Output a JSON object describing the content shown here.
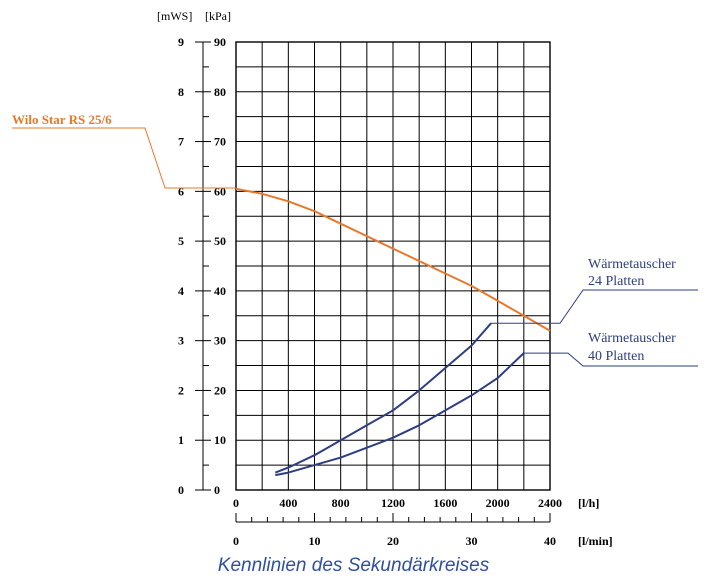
{
  "chart_data": {
    "type": "line",
    "title": "Kennlinien des Sekundärkreises",
    "y_units": [
      "[mWS]",
      "[kPa]"
    ],
    "y_left_ticks": [
      "0",
      "1",
      "2",
      "3",
      "4",
      "5",
      "6",
      "7",
      "8",
      "9"
    ],
    "y_right_ticks": [
      "0",
      "10",
      "20",
      "30",
      "40",
      "50",
      "60",
      "70",
      "80",
      "90"
    ],
    "x_ticks": [
      "0",
      "400",
      "800",
      "1200",
      "1600",
      "2000",
      "2400"
    ],
    "x_unit": "[l/h]",
    "x2_ticks": [
      "0",
      "10",
      "20",
      "30",
      "40"
    ],
    "x2_unit": "[l/min]",
    "xlim": [
      0,
      2400
    ],
    "ylim": [
      0,
      90
    ],
    "grid": true,
    "series": [
      {
        "name": "Wilo Star RS 25/6",
        "color": "#e8782a",
        "x": [
          0,
          200,
          400,
          600,
          800,
          1000,
          1200,
          1400,
          1600,
          1800,
          2000,
          2200,
          2400
        ],
        "y": [
          60.5,
          59.5,
          58,
          56,
          53.5,
          51,
          48.5,
          46,
          43.5,
          41,
          38,
          35,
          32
        ]
      },
      {
        "name": "Wärmetauscher 24 Platten",
        "color": "#2e3e82",
        "x": [
          300,
          400,
          600,
          800,
          1000,
          1200,
          1400,
          1600,
          1800,
          1950
        ],
        "y": [
          3.5,
          4.5,
          7,
          10,
          13,
          16,
          20,
          24.5,
          29,
          33.5
        ]
      },
      {
        "name": "Wärmetauscher 40 Platten",
        "color": "#2e3e82",
        "x": [
          300,
          400,
          600,
          800,
          1000,
          1200,
          1400,
          1600,
          1800,
          2000,
          2200
        ],
        "y": [
          3,
          3.5,
          5,
          6.5,
          8.5,
          10.5,
          13,
          16,
          19,
          22.5,
          27.5
        ]
      }
    ],
    "labels": {
      "pump": "Wilo Star RS 25/6",
      "hx24": [
        "Wärmetauscher",
        "24 Platten"
      ],
      "hx40": [
        "Wärmetauscher",
        "40 Platten"
      ]
    }
  },
  "colors": {
    "pump": "#e8782a",
    "hx": "#2e3e82",
    "caption": "#2e4fa0"
  }
}
